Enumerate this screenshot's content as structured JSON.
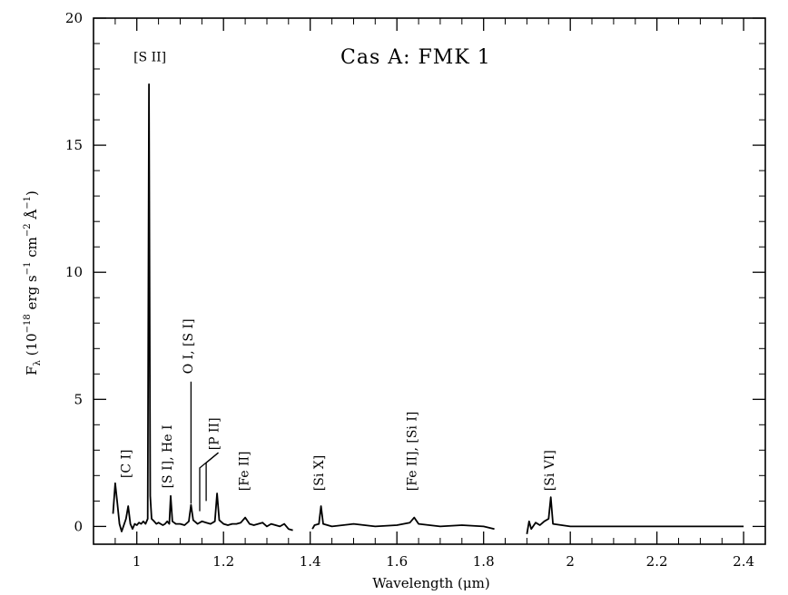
{
  "chart_data": {
    "type": "line",
    "title": "Cas A: FMK 1",
    "xlabel": "Wavelength (μm)",
    "ylabel": "F_λ (10^-18 erg s^-1 cm^-2 Å^-1)",
    "ylabel_parts": {
      "f": "F",
      "sub": "λ",
      "open": "(10",
      "exp1": "−18",
      "erg": "erg s",
      "exp2": "−1",
      "cm": "cm",
      "exp3": "−2",
      "ang": "Å",
      "exp4": "−1",
      "close": ")"
    },
    "xlim": [
      0.9,
      2.45
    ],
    "ylim": [
      -0.7,
      20
    ],
    "xticks": [
      1,
      1.2,
      1.4,
      1.6,
      1.8,
      2,
      2.2,
      2.4
    ],
    "xtick_labels": [
      "1",
      "1.2",
      "1.4",
      "1.6",
      "1.8",
      "2",
      "2.2",
      "2.4"
    ],
    "yticks": [
      0,
      5,
      10,
      15,
      20
    ],
    "ytick_labels": [
      "0",
      "5",
      "10",
      "15",
      "20"
    ],
    "grid": false,
    "segments": [
      {
        "x": [
          0.945,
          0.95,
          0.955,
          0.96,
          0.965,
          0.97,
          0.975,
          0.98,
          0.985,
          0.99,
          0.995,
          1.0,
          1.005,
          1.01,
          1.015,
          1.02,
          1.025,
          1.028,
          1.031,
          1.034,
          1.04,
          1.045,
          1.05,
          1.055,
          1.06,
          1.065,
          1.07,
          1.075,
          1.078,
          1.082,
          1.09,
          1.1,
          1.11,
          1.12,
          1.125,
          1.13,
          1.14,
          1.15,
          1.16,
          1.17,
          1.18,
          1.185,
          1.19,
          1.2,
          1.21,
          1.22,
          1.23,
          1.24,
          1.25,
          1.26,
          1.27,
          1.28,
          1.29,
          1.3,
          1.31,
          1.32,
          1.33,
          1.34,
          1.35,
          1.36
        ],
        "y": [
          0.5,
          1.7,
          0.9,
          0.1,
          -0.2,
          0.05,
          0.3,
          0.8,
          0.1,
          -0.1,
          0.1,
          0.05,
          0.15,
          0.1,
          0.2,
          0.1,
          0.3,
          17.4,
          1.2,
          0.3,
          0.2,
          0.1,
          0.15,
          0.1,
          0.05,
          0.1,
          0.2,
          0.1,
          1.2,
          0.2,
          0.1,
          0.1,
          0.05,
          0.2,
          0.85,
          0.25,
          0.1,
          0.2,
          0.15,
          0.1,
          0.2,
          1.3,
          0.25,
          0.1,
          0.05,
          0.1,
          0.1,
          0.15,
          0.35,
          0.1,
          0.05,
          0.1,
          0.15,
          0.0,
          0.1,
          0.05,
          0.0,
          0.1,
          -0.1,
          -0.15
        ]
      },
      {
        "x": [
          1.405,
          1.41,
          1.42,
          1.425,
          1.43,
          1.44,
          1.45,
          1.5,
          1.55,
          1.6,
          1.63,
          1.64,
          1.65,
          1.7,
          1.75,
          1.8,
          1.825
        ],
        "y": [
          -0.1,
          0.05,
          0.1,
          0.8,
          0.1,
          0.05,
          0.0,
          0.1,
          0.0,
          0.05,
          0.15,
          0.35,
          0.1,
          0.0,
          0.05,
          0.0,
          -0.1
        ]
      },
      {
        "x": [
          1.9,
          1.905,
          1.91,
          1.92,
          1.93,
          1.94,
          1.95,
          1.955,
          1.96,
          1.98,
          2.0,
          2.1,
          2.2,
          2.3,
          2.4
        ],
        "y": [
          -0.3,
          0.2,
          -0.1,
          0.15,
          0.05,
          0.2,
          0.3,
          1.15,
          0.1,
          0.05,
          0.0,
          0.0,
          0.0,
          0.0,
          0.0
        ]
      }
    ],
    "annotations": [
      {
        "id": "ci",
        "text": "[C I]",
        "x": 0.985,
        "y": 1.9,
        "orientation": "vertical"
      },
      {
        "id": "sii",
        "text": "[S II]",
        "x": 1.03,
        "y": 18.3,
        "orientation": "horizontal"
      },
      {
        "id": "si-hei",
        "text": "[S I], He I",
        "x": 1.08,
        "y": 1.5,
        "orientation": "vertical"
      },
      {
        "id": "oi-si",
        "text": "O I, [S I]",
        "x": 1.128,
        "y": 6.0,
        "orientation": "vertical"
      },
      {
        "id": "pii",
        "text": "[P II]",
        "x": 1.188,
        "y": 3.0,
        "orientation": "vertical"
      },
      {
        "id": "feii",
        "text": "[Fe II]",
        "x": 1.257,
        "y": 1.4,
        "orientation": "vertical"
      },
      {
        "id": "six",
        "text": "[Si X]",
        "x": 1.43,
        "y": 1.4,
        "orientation": "vertical"
      },
      {
        "id": "feii-sii",
        "text": "[Fe II], [Si I]",
        "x": 1.645,
        "y": 1.4,
        "orientation": "vertical"
      },
      {
        "id": "sivi",
        "text": "[Si VI]",
        "x": 1.962,
        "y": 1.4,
        "orientation": "vertical"
      }
    ],
    "leader_lines": [
      {
        "id": "oi-si-line",
        "points": [
          [
            1.125,
            5.7
          ],
          [
            1.125,
            0.9
          ]
        ]
      },
      {
        "id": "pii-line-a",
        "points": [
          [
            1.188,
            2.9
          ],
          [
            1.16,
            2.5
          ],
          [
            1.16,
            1.0
          ]
        ]
      },
      {
        "id": "pii-line-b",
        "points": [
          [
            1.188,
            2.9
          ],
          [
            1.145,
            2.3
          ],
          [
            1.145,
            0.6
          ]
        ]
      }
    ]
  }
}
